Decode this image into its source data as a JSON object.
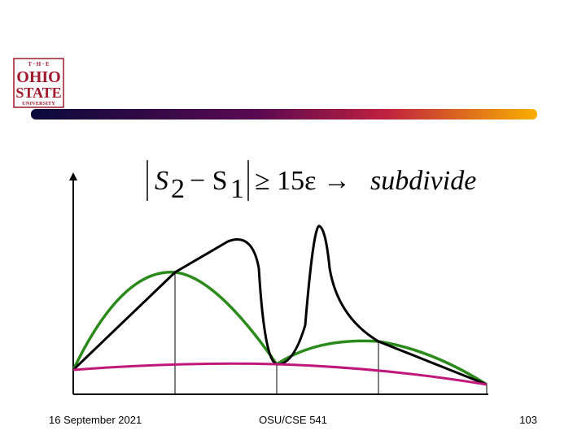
{
  "logo": {
    "line1": "T · H · E",
    "line2": "OHIO",
    "line3": "STATE",
    "line4": "UNIVERSITY"
  },
  "formula": {
    "s_a": "S",
    "sub_a": "2",
    "minus": "− S",
    "sub_b": "1",
    "rel": "≥ 15ε →",
    "word": "subdivide"
  },
  "footer": {
    "date": "16 September 2021",
    "course": "OSU/CSE 541",
    "page": "103"
  }
}
